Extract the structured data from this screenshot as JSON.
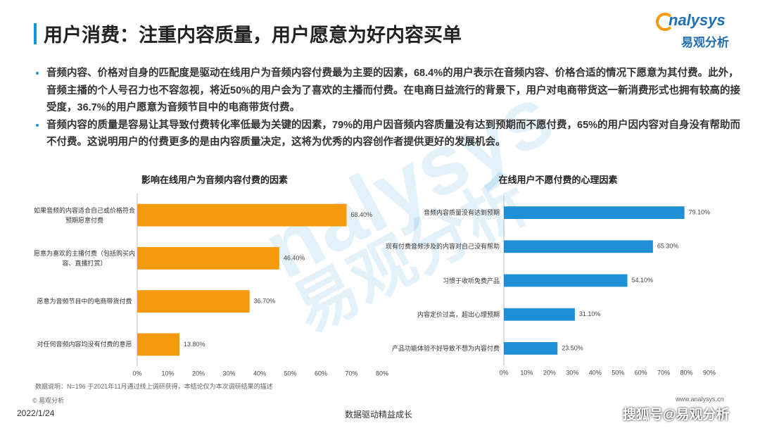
{
  "header": {
    "title": "用户消费：注重内容质量，用户愿意为好内容买单",
    "logo_text": "nalysys",
    "logo_brand": "易观分析"
  },
  "watermark": {
    "text": "nalysys",
    "brand": "易观分析"
  },
  "bullets": [
    "音频内容、价格对自身的匹配度是驱动在线用户为音频内容付费最为主要的因素，68.4%的用户表示在音频内容、价格合适的情况下愿意为其付费。此外，音频主播的个人号召力也不容忽视，将近50%的用户会为了喜欢的主播而付费。在电商日益流行的背景下，用户对电商带货这一新消费形式也拥有较高的接受度，36.7%的用户愿意为音频节目中的电商带货付费。",
    "音频内容的质量是容易让其导致付费转化率低最为关键的因素，79%的用户因音频内容质量没有达到预期而不愿付费，65%的用户因内容对自身没有帮助而不付费。这说明用户的付费更多的是由内容质量决定，这将为优秀的内容创作者提供更好的发展机会。"
  ],
  "chart_data": [
    {
      "type": "hbar",
      "title": "影响在线用户为音频内容付费的因素",
      "color": "#f59a0c",
      "categories": [
        "如果音频的内容适合自己或价格符合预期愿意付费",
        "愿意为喜欢的主播付费（包括购买内容、直播打赏）",
        "愿意为音频节目中的电商带货付费",
        "对任何音频内容均没有付费的意愿"
      ],
      "values": [
        68.4,
        46.4,
        36.7,
        13.8
      ],
      "value_labels": [
        "68.40%",
        "46.40%",
        "36.70%",
        "13.80%"
      ],
      "xlim": [
        0,
        80
      ],
      "xticks": [
        {
          "value": 0,
          "label": "0%"
        },
        {
          "value": 10,
          "label": "10%"
        },
        {
          "value": 20,
          "label": "20%"
        },
        {
          "value": 30,
          "label": "30%"
        },
        {
          "value": 40,
          "label": "40%"
        },
        {
          "value": 50,
          "label": "50%"
        },
        {
          "value": 60,
          "label": "60%"
        },
        {
          "value": 70,
          "label": "70%"
        },
        {
          "value": 80,
          "label": "80%"
        }
      ]
    },
    {
      "type": "hbar",
      "title": "在线用户不愿付费的心理因素",
      "color": "#1f8fd6",
      "categories": [
        "音频内容质量没有达到预期",
        "现有付费音频涉及的内容对自己没有帮助",
        "习惯于收听免费产品",
        "内容定价过高，超出心理预期",
        "产品功能体验不好导致不想为内容付费"
      ],
      "values": [
        79.1,
        65.3,
        54.1,
        31.1,
        23.5
      ],
      "value_labels": [
        "79.10%",
        "65.30%",
        "54.10%",
        "31.10%",
        "23.50%"
      ],
      "xlim": [
        0,
        90
      ],
      "xticks": [
        {
          "value": 0,
          "label": "0%"
        },
        {
          "value": 10,
          "label": "10%"
        },
        {
          "value": 20,
          "label": "20%"
        },
        {
          "value": 30,
          "label": "30%"
        },
        {
          "value": 40,
          "label": "40%"
        },
        {
          "value": 50,
          "label": "50%"
        },
        {
          "value": 60,
          "label": "60%"
        },
        {
          "value": 70,
          "label": "70%"
        },
        {
          "value": 80,
          "label": "80%"
        },
        {
          "value": 90,
          "label": "90%"
        }
      ]
    }
  ],
  "footer": {
    "note": "数据说明：N=196 于2021年11月通过线上调研获得，本结论仅为本次调研结果的描述",
    "copyright": "© 易观分析",
    "date": "2022/1/24",
    "slogan": "数据驱动精益成长",
    "url": "www.analysys.cn",
    "source": "搜狐号@易观分析"
  }
}
